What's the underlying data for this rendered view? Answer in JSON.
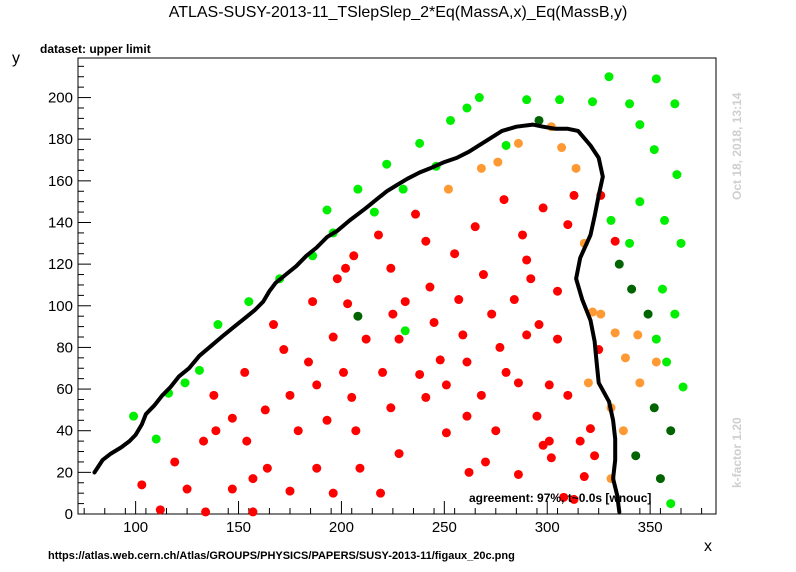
{
  "title": "ATLAS-SUSY-2013-11_TSlepSlep_2*Eq(MassA,x)_Eq(MassB,y)",
  "dataset_label": "dataset: upper limit",
  "timestamp": "Oct 18, 2018, 13:14",
  "k_factor": "k-factor 1.20",
  "agreement": "agreement: 97%, t~0.0s [wnouc]",
  "source_url": "https://atlas.web.cern.ch/Atlas/GROUPS/PHYSICS/PAPERS/SUSY-2013-11/figaux_20c.png",
  "colors": {
    "bright_green": "#00ee00",
    "dark_green": "#006400",
    "orange": "#ff9933",
    "red": "#ff0000",
    "curve": "#000000"
  },
  "chart_data": {
    "type": "scatter",
    "xlabel": "x",
    "ylabel": "y",
    "xlim": [
      72,
      382
    ],
    "ylim": [
      0,
      219
    ],
    "xticks": [
      100,
      150,
      200,
      250,
      300,
      350
    ],
    "yticks": [
      0,
      20,
      40,
      60,
      80,
      100,
      120,
      140,
      160,
      180,
      200
    ],
    "series": [
      {
        "color_key": "bright_green",
        "points": [
          [
            99,
            47
          ],
          [
            110,
            36
          ],
          [
            116,
            58
          ],
          [
            124,
            63
          ],
          [
            131,
            69
          ],
          [
            140,
            91
          ],
          [
            155,
            102
          ],
          [
            170,
            113
          ],
          [
            186,
            124
          ],
          [
            196,
            135
          ],
          [
            193,
            146
          ],
          [
            208,
            156
          ],
          [
            216,
            145
          ],
          [
            222,
            168
          ],
          [
            230,
            156
          ],
          [
            231,
            88
          ],
          [
            238,
            178
          ],
          [
            246,
            167
          ],
          [
            253,
            189
          ],
          [
            261,
            195
          ],
          [
            267,
            200
          ],
          [
            280,
            177
          ],
          [
            290,
            199
          ],
          [
            306,
            199
          ],
          [
            322,
            198
          ],
          [
            330,
            210
          ],
          [
            340,
            197
          ],
          [
            345,
            187
          ],
          [
            353,
            209
          ],
          [
            362,
            197
          ],
          [
            352,
            175
          ],
          [
            363,
            163
          ],
          [
            331,
            141
          ],
          [
            345,
            150
          ],
          [
            357,
            141
          ],
          [
            365,
            130
          ],
          [
            340,
            130
          ],
          [
            356,
            108
          ],
          [
            362,
            96
          ],
          [
            358,
            73
          ],
          [
            353,
            84
          ],
          [
            366,
            61
          ],
          [
            360,
            5
          ]
        ]
      },
      {
        "color_key": "dark_green",
        "points": [
          [
            208,
            95
          ],
          [
            296,
            189
          ],
          [
            335,
            120
          ],
          [
            341,
            108
          ],
          [
            349,
            96
          ],
          [
            352,
            51
          ],
          [
            343,
            28
          ],
          [
            360,
            40
          ],
          [
            355,
            17
          ]
        ]
      },
      {
        "color_key": "orange",
        "points": [
          [
            252,
            156
          ],
          [
            268,
            166
          ],
          [
            276,
            169
          ],
          [
            286,
            178
          ],
          [
            302,
            186
          ],
          [
            307,
            176
          ],
          [
            314,
            166
          ],
          [
            318,
            130
          ],
          [
            322,
            97
          ],
          [
            326,
            96
          ],
          [
            333,
            87
          ],
          [
            344,
            86
          ],
          [
            338,
            75
          ],
          [
            353,
            73
          ],
          [
            320,
            63
          ],
          [
            331,
            51
          ],
          [
            345,
            63
          ],
          [
            337,
            40
          ],
          [
            331,
            17
          ]
        ]
      },
      {
        "color_key": "red",
        "points": [
          [
            103,
            14
          ],
          [
            112,
            2
          ],
          [
            119,
            25
          ],
          [
            125,
            12
          ],
          [
            133,
            35
          ],
          [
            134,
            1
          ],
          [
            138,
            57
          ],
          [
            139,
            40
          ],
          [
            147,
            46
          ],
          [
            147,
            12
          ],
          [
            153,
            68
          ],
          [
            154,
            35
          ],
          [
            157,
            1
          ],
          [
            157,
            17
          ],
          [
            164,
            22
          ],
          [
            163,
            50
          ],
          [
            167,
            91
          ],
          [
            172,
            79
          ],
          [
            175,
            11
          ],
          [
            175,
            57
          ],
          [
            179,
            40
          ],
          [
            184,
            73
          ],
          [
            186,
            102
          ],
          [
            188,
            22
          ],
          [
            188,
            62
          ],
          [
            193,
            45
          ],
          [
            196,
            10
          ],
          [
            196,
            85
          ],
          [
            198,
            113
          ],
          [
            201,
            68
          ],
          [
            202,
            118
          ],
          [
            203,
            101
          ],
          [
            205,
            56
          ],
          [
            206,
            124
          ],
          [
            207,
            40
          ],
          [
            209,
            22
          ],
          [
            212,
            84
          ],
          [
            218,
            134
          ],
          [
            220,
            68
          ],
          [
            219,
            10
          ],
          [
            224,
            118
          ],
          [
            224,
            51
          ],
          [
            225,
            96
          ],
          [
            228,
            84
          ],
          [
            228,
            29
          ],
          [
            231,
            102
          ],
          [
            236,
            144
          ],
          [
            238,
            67
          ],
          [
            241,
            56
          ],
          [
            241,
            131
          ],
          [
            243,
            109
          ],
          [
            245,
            92
          ],
          [
            248,
            74
          ],
          [
            251,
            62
          ],
          [
            251,
            39
          ],
          [
            255,
            125
          ],
          [
            257,
            103
          ],
          [
            259,
            86
          ],
          [
            261,
            73
          ],
          [
            261,
            47
          ],
          [
            262,
            20
          ],
          [
            265,
            138
          ],
          [
            268,
            57
          ],
          [
            269,
            115
          ],
          [
            270,
            25
          ],
          [
            273,
            96
          ],
          [
            275,
            40
          ],
          [
            277,
            80
          ],
          [
            279,
            151
          ],
          [
            280,
            68
          ],
          [
            284,
            103
          ],
          [
            286,
            63
          ],
          [
            286,
            19
          ],
          [
            288,
            134
          ],
          [
            290,
            86
          ],
          [
            290,
            122
          ],
          [
            292,
            113
          ],
          [
            295,
            47
          ],
          [
            298,
            147
          ],
          [
            296,
            91
          ],
          [
            301,
            35
          ],
          [
            301,
            62
          ],
          [
            305,
            84
          ],
          [
            305,
            107
          ],
          [
            310,
            139
          ],
          [
            310,
            57
          ],
          [
            313,
            153
          ],
          [
            316,
            35
          ],
          [
            318,
            18
          ],
          [
            321,
            41
          ],
          [
            323,
            28
          ],
          [
            325,
            79
          ],
          [
            326,
            153
          ],
          [
            333,
            131
          ],
          [
            298,
            33
          ],
          [
            302,
            27
          ],
          [
            308,
            8
          ],
          [
            313,
            7
          ]
        ]
      }
    ],
    "curve": [
      [
        80,
        20
      ],
      [
        84,
        26
      ],
      [
        88,
        29
      ],
      [
        93,
        32
      ],
      [
        97,
        35
      ],
      [
        100,
        38
      ],
      [
        103,
        43
      ],
      [
        105,
        48
      ],
      [
        109,
        52
      ],
      [
        113,
        57
      ],
      [
        117,
        61
      ],
      [
        121,
        66
      ],
      [
        126,
        70
      ],
      [
        131,
        76
      ],
      [
        137,
        81
      ],
      [
        143,
        86
      ],
      [
        148,
        90
      ],
      [
        153,
        94
      ],
      [
        158,
        98
      ],
      [
        162,
        102
      ],
      [
        165,
        107
      ],
      [
        168,
        111
      ],
      [
        173,
        115
      ],
      [
        178,
        119
      ],
      [
        183,
        124
      ],
      [
        188,
        128
      ],
      [
        193,
        133
      ],
      [
        198,
        136
      ],
      [
        204,
        141
      ],
      [
        208,
        144
      ],
      [
        212,
        147
      ],
      [
        217,
        151
      ],
      [
        222,
        155
      ],
      [
        227,
        158
      ],
      [
        232,
        161
      ],
      [
        238,
        164
      ],
      [
        243,
        166
      ],
      [
        250,
        169
      ],
      [
        256,
        171
      ],
      [
        262,
        174
      ],
      [
        270,
        179
      ],
      [
        278,
        184
      ],
      [
        285,
        186
      ],
      [
        293,
        187
      ],
      [
        298,
        186
      ],
      [
        304,
        185
      ],
      [
        310,
        185
      ],
      [
        315,
        184
      ],
      [
        321,
        177
      ],
      [
        325,
        171
      ],
      [
        327,
        162
      ],
      [
        325,
        153
      ],
      [
        323,
        143
      ],
      [
        321,
        134
      ],
      [
        316,
        123
      ],
      [
        314,
        113
      ],
      [
        317,
        103
      ],
      [
        321,
        93
      ],
      [
        323,
        83
      ],
      [
        324,
        73
      ],
      [
        325,
        63
      ],
      [
        330,
        54
      ],
      [
        332,
        45
      ],
      [
        333,
        36
      ],
      [
        333,
        26
      ],
      [
        332,
        17
      ],
      [
        334,
        9
      ],
      [
        335,
        1
      ]
    ]
  }
}
